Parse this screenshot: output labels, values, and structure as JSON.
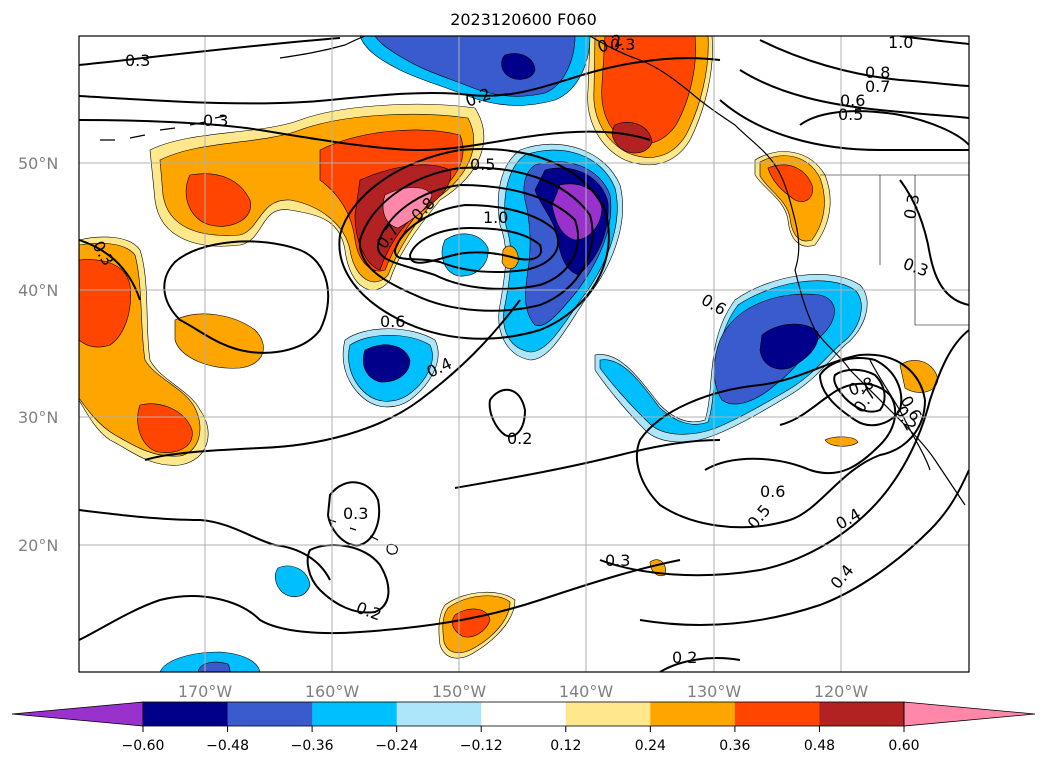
{
  "title": "2023120600 F060",
  "colors": {
    "shade_fills": [
      "#9932cc",
      "#00008b",
      "#3a5bcd",
      "#00bfff",
      "#ade6fa",
      "#ffffff",
      "#ffe88c",
      "#ffa500",
      "#ff4500",
      "#b22222",
      "#ff88aa"
    ],
    "contour_stroke": "#000000",
    "grid": "#b0b0b0",
    "coast": "#000000"
  },
  "lat_labels": [
    "50°N",
    "40°N",
    "30°N",
    "20°N"
  ],
  "lon_labels": [
    "170°W",
    "160°W",
    "150°W",
    "140°W",
    "130°W",
    "120°W"
  ],
  "colorbar": {
    "levels": [
      "−0.60",
      "−0.48",
      "−0.36",
      "−0.24",
      "−0.12",
      "0.12",
      "0.24",
      "0.36",
      "0.48",
      "0.60"
    ]
  },
  "contour_labels": [
    "0.3",
    "0.3",
    "0.2",
    "0.4",
    "1.0",
    "0.8",
    "0.7",
    "0.6",
    "0.5",
    "0.3",
    "0.5",
    "0.8",
    "0.7",
    "0.6",
    "1.0",
    "0.3",
    "0.3",
    "0.6",
    "0.4",
    "0.2",
    "0.3",
    "0.2",
    "0.3",
    "0.2",
    "0.6",
    "0.5",
    "0.4",
    "0.2",
    "0.3",
    "0.8",
    "0.7",
    "0.6",
    "0.2"
  ]
}
